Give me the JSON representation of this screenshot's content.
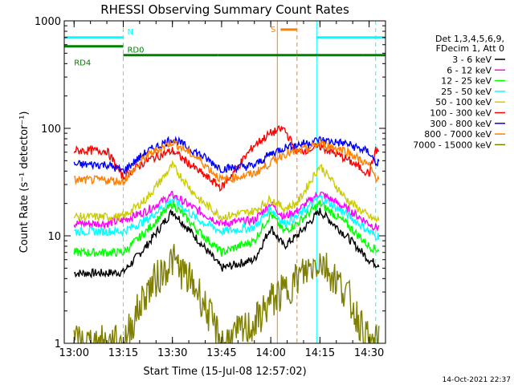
{
  "chart_data": {
    "type": "line",
    "title": "RHESSI Observing Summary Count Rates",
    "xlabel": "Start Time (15-Jul-08 12:57:02)",
    "ylabel": "Count Rate (s⁻¹ detector⁻¹)",
    "y_scale": "log",
    "xlim": [
      "12:57",
      "14:35"
    ],
    "ylim": [
      1,
      1000
    ],
    "x_ticks": [
      "13:00",
      "13:15",
      "13:30",
      "13:45",
      "14:00",
      "14:15",
      "14:30"
    ],
    "y_ticks": [
      "1",
      "10",
      "100",
      "1000"
    ],
    "legend_position": "right",
    "legend_header": [
      "Det 1,3,4,5,6,9,",
      "FDecim 1, Att 0"
    ],
    "series": [
      {
        "name": "3 - 6 keV",
        "color": "#000000",
        "x": [
          "13:00",
          "13:10",
          "13:15",
          "13:22",
          "13:30",
          "13:38",
          "13:45",
          "13:55",
          "14:00",
          "14:04",
          "14:08",
          "14:15",
          "14:23",
          "14:30",
          "14:32"
        ],
        "y": [
          4.5,
          4.5,
          4.6,
          8,
          17,
          9,
          5,
          6,
          12,
          8,
          10,
          17,
          10,
          6,
          5.5
        ]
      },
      {
        "name": "6 - 12 keV",
        "color": "#ff00ff",
        "x": [
          "13:00",
          "13:10",
          "13:15",
          "13:22",
          "13:30",
          "13:38",
          "13:45",
          "13:55",
          "14:00",
          "14:04",
          "14:08",
          "14:15",
          "14:23",
          "14:30",
          "14:32"
        ],
        "y": [
          13,
          13,
          14,
          17,
          24,
          17,
          13,
          14,
          20,
          15,
          17,
          25,
          18,
          13,
          12
        ]
      },
      {
        "name": "12 - 25 keV",
        "color": "#00ff00",
        "x": [
          "13:00",
          "13:10",
          "13:15",
          "13:22",
          "13:30",
          "13:38",
          "13:45",
          "13:55",
          "14:00",
          "14:04",
          "14:08",
          "14:15",
          "14:23",
          "14:30",
          "14:32"
        ],
        "y": [
          7,
          7,
          7,
          11,
          20,
          11,
          7,
          9,
          16,
          11,
          13,
          20,
          13,
          8,
          7.5
        ]
      },
      {
        "name": "25 - 50 keV",
        "color": "#00ffff",
        "x": [
          "13:00",
          "13:10",
          "13:15",
          "13:22",
          "13:30",
          "13:38",
          "13:45",
          "13:55",
          "14:00",
          "14:04",
          "14:08",
          "14:15",
          "14:23",
          "14:30",
          "14:32"
        ],
        "y": [
          11,
          11,
          11,
          14,
          22,
          14,
          11,
          12,
          18,
          13,
          15,
          23,
          16,
          11,
          10
        ]
      },
      {
        "name": "50 - 100 keV",
        "color": "#cccc00",
        "x": [
          "13:00",
          "13:10",
          "13:15",
          "13:22",
          "13:30",
          "13:38",
          "13:45",
          "13:55",
          "14:00",
          "14:04",
          "14:08",
          "14:15",
          "14:23",
          "14:30",
          "14:32"
        ],
        "y": [
          15,
          15,
          15,
          22,
          45,
          22,
          15,
          17,
          22,
          18,
          20,
          45,
          22,
          15,
          14
        ]
      },
      {
        "name": "100 - 300 keV",
        "color": "#ff0000",
        "x": [
          "13:00",
          "13:10",
          "13:15",
          "13:22",
          "13:30",
          "13:38",
          "13:45",
          "13:55",
          "14:00",
          "14:04",
          "14:08",
          "14:15",
          "14:23",
          "14:30",
          "14:32"
        ],
        "y": [
          62,
          62,
          35,
          50,
          62,
          40,
          28,
          70,
          90,
          100,
          60,
          68,
          52,
          38,
          62
        ]
      },
      {
        "name": "300 - 800 keV",
        "color": "#0000ff",
        "x": [
          "13:00",
          "13:10",
          "13:15",
          "13:22",
          "13:30",
          "13:38",
          "13:45",
          "13:55",
          "14:00",
          "14:04",
          "14:08",
          "14:15",
          "14:23",
          "14:30",
          "14:32"
        ],
        "y": [
          46,
          46,
          40,
          60,
          80,
          58,
          42,
          45,
          58,
          66,
          70,
          78,
          72,
          60,
          48
        ]
      },
      {
        "name": "800 - 7000 keV",
        "color": "#ff8000",
        "x": [
          "13:00",
          "13:10",
          "13:15",
          "13:22",
          "13:30",
          "13:38",
          "13:45",
          "13:55",
          "14:00",
          "14:04",
          "14:08",
          "14:15",
          "14:23",
          "14:30",
          "14:32"
        ],
        "y": [
          33,
          33,
          32,
          55,
          75,
          52,
          33,
          38,
          48,
          58,
          60,
          72,
          62,
          45,
          35
        ]
      },
      {
        "name": "7000 - 15000 keV",
        "color": "#808000",
        "x": [
          "13:00",
          "13:10",
          "13:15",
          "13:22",
          "13:30",
          "13:38",
          "13:45",
          "13:55",
          "14:00",
          "14:04",
          "14:08",
          "14:15",
          "14:23",
          "14:30",
          "14:32"
        ],
        "y": [
          1,
          1,
          1,
          3,
          6,
          3,
          1,
          1.5,
          2.5,
          3,
          4,
          6,
          3,
          1,
          1
        ]
      }
    ],
    "state_bars": [
      {
        "label": "N",
        "color": "#00ffff",
        "y_level": 700,
        "segments": [
          [
            "12:57",
            "13:15"
          ],
          [
            "14:14",
            "14:35"
          ]
        ]
      },
      {
        "label": "RD0",
        "color": "#008000",
        "y_level": 580,
        "segments": [
          [
            "12:57",
            "13:15"
          ]
        ]
      },
      {
        "label": "RD4",
        "color": "#008000",
        "y_level": 480,
        "segments": [
          [
            "13:15",
            "13:44"
          ],
          [
            "13:44",
            "14:08"
          ],
          [
            "14:08",
            "14:28"
          ],
          [
            "14:28",
            "14:35"
          ]
        ]
      },
      {
        "label": "S",
        "color": "#ff8000",
        "y_level": 830,
        "segments": [
          [
            "14:03",
            "14:08"
          ]
        ]
      }
    ],
    "vlines": [
      {
        "x": "13:15",
        "color": "#00ffff",
        "style": "dashed"
      },
      {
        "x": "14:14",
        "color": "#00ffff",
        "style": "solid"
      },
      {
        "x": "14:32",
        "color": "#00ffff",
        "style": "dashed"
      },
      {
        "x": "14:02",
        "color": "#ff8000",
        "style": "solid"
      },
      {
        "x": "14:08",
        "color": "#ff8000",
        "style": "dashed"
      },
      {
        "x": "12:57",
        "color": "#00ffff",
        "style": "solid"
      }
    ]
  },
  "footer": {
    "timestamp": "14-Oct-2021 22:37"
  }
}
